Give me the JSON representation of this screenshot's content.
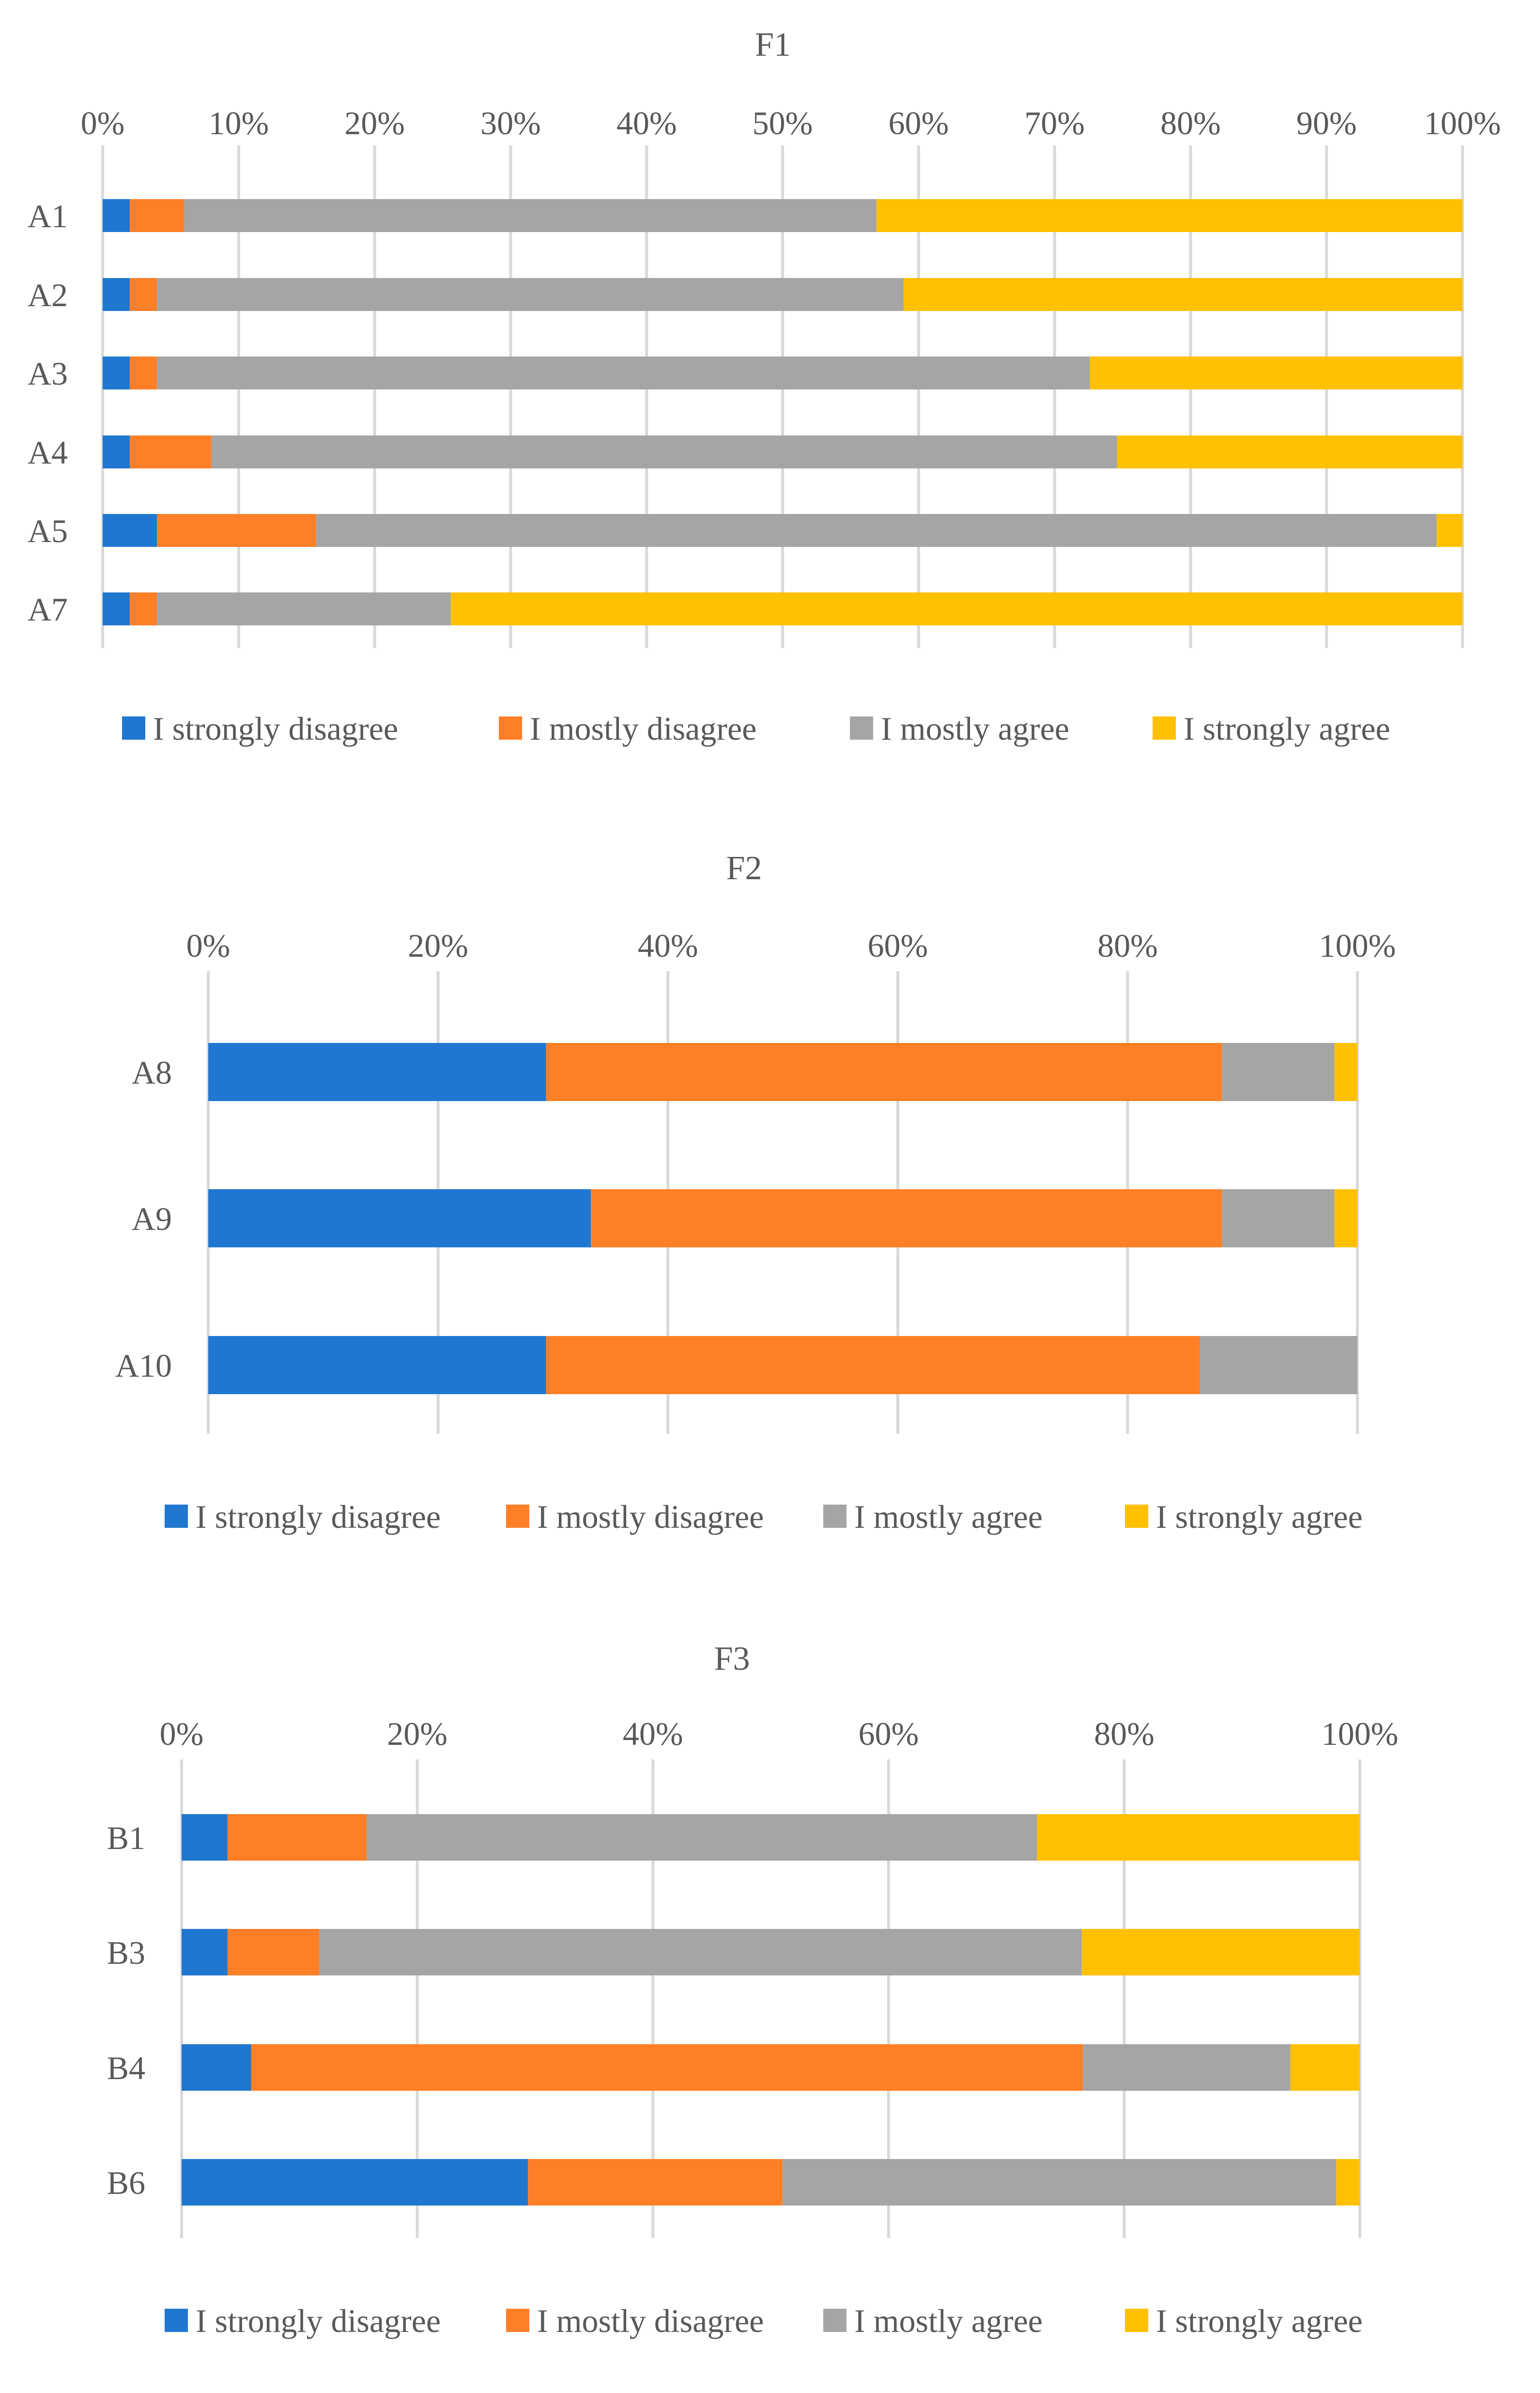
{
  "colors": {
    "strongly_disagree": "#1F77D0",
    "mostly_disagree": "#FF7F27",
    "mostly_agree": "#A5A5A5",
    "strongly_agree": "#FFC000",
    "grid": "#D9D9D9",
    "text": "#595959"
  },
  "chart_data": [
    {
      "type": "bar",
      "orientation": "horizontal",
      "stacked": "percent",
      "title": "F1",
      "categories": [
        "A1",
        "A2",
        "A3",
        "A4",
        "A5",
        "A7"
      ],
      "xlim": [
        0,
        100
      ],
      "ticks": [
        "0%",
        "10%",
        "20%",
        "30%",
        "40%",
        "50%",
        "60%",
        "70%",
        "80%",
        "90%",
        "100%"
      ],
      "axis_position": "top",
      "grid": true,
      "legend": "bottom",
      "series": [
        {
          "name": "I strongly disagree",
          "values": [
            2,
            2,
            2,
            2,
            4,
            2
          ]
        },
        {
          "name": "I mostly disagree",
          "values": [
            4,
            2,
            2,
            6,
            11.7,
            2
          ]
        },
        {
          "name": "I mostly agree",
          "values": [
            50.9,
            54.9,
            68.6,
            66.6,
            82.4,
            21.6
          ]
        },
        {
          "name": "I strongly agree",
          "values": [
            43.1,
            41.1,
            27.4,
            25.4,
            1.9,
            74.4
          ]
        }
      ]
    },
    {
      "type": "bar",
      "orientation": "horizontal",
      "stacked": "percent",
      "title": "F2",
      "categories": [
        "A8",
        "A9",
        "A10"
      ],
      "xlim": [
        0,
        100
      ],
      "ticks": [
        "0%",
        "20%",
        "40%",
        "60%",
        "80%",
        "100%"
      ],
      "axis_position": "top",
      "grid": true,
      "legend": "bottom",
      "series": [
        {
          "name": "I strongly disagree",
          "values": [
            29.4,
            33.3,
            29.4
          ]
        },
        {
          "name": "I mostly disagree",
          "values": [
            58.8,
            54.9,
            56.9
          ]
        },
        {
          "name": "I mostly agree",
          "values": [
            9.8,
            9.8,
            13.7
          ]
        },
        {
          "name": "I strongly agree",
          "values": [
            2,
            2,
            0
          ]
        }
      ]
    },
    {
      "type": "bar",
      "orientation": "horizontal",
      "stacked": "percent",
      "title": "F3",
      "categories": [
        "B1",
        "B3",
        "B4",
        "B6"
      ],
      "xlim": [
        0,
        100
      ],
      "ticks": [
        "0%",
        "20%",
        "40%",
        "60%",
        "80%",
        "100%"
      ],
      "axis_position": "top",
      "grid": true,
      "legend": "bottom",
      "series": [
        {
          "name": "I strongly disagree",
          "values": [
            3.9,
            3.9,
            5.9,
            29.4
          ]
        },
        {
          "name": "I mostly disagree",
          "values": [
            11.8,
            7.8,
            70.6,
            21.6
          ]
        },
        {
          "name": "I mostly agree",
          "values": [
            56.9,
            64.7,
            17.6,
            47
          ]
        },
        {
          "name": "I strongly agree",
          "values": [
            27.4,
            23.6,
            5.9,
            2
          ]
        }
      ]
    }
  ]
}
